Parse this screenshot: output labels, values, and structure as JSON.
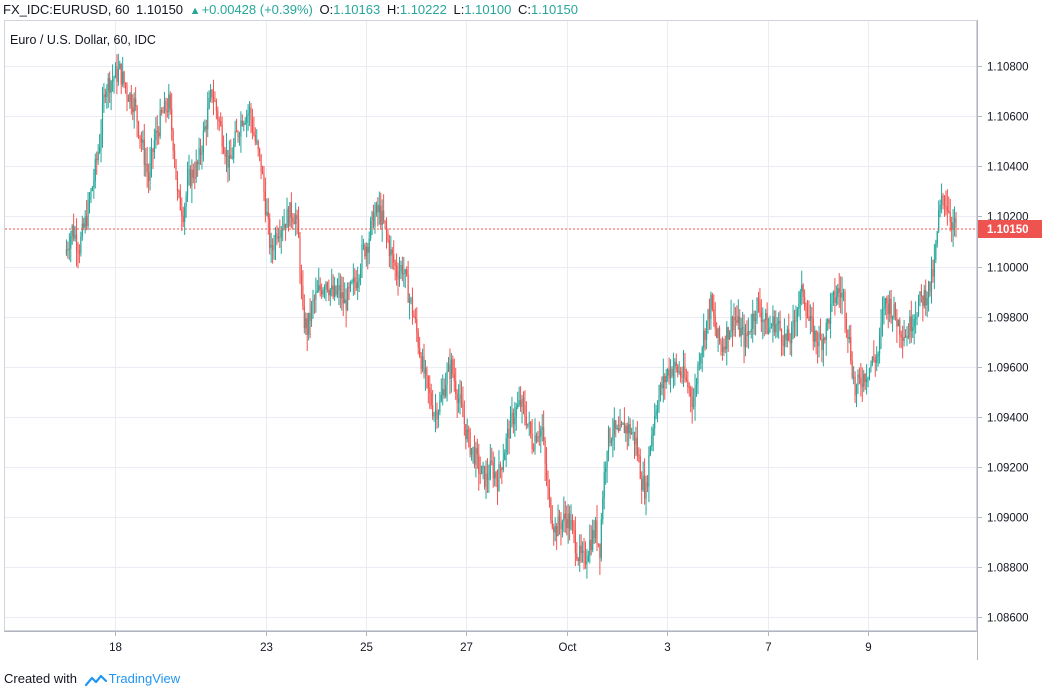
{
  "header": {
    "symbol_interval": "FX_IDC:EURUSD, 60",
    "last": "1.10150",
    "change": "+0.00428 (+0.39%)",
    "o_label": "O:",
    "o_value": "1.10163",
    "h_label": "H:",
    "h_value": "1.10222",
    "l_label": "L:",
    "l_value": "1.10100",
    "c_label": "C:",
    "c_value": "1.10150"
  },
  "footer": {
    "created_with": "Created with",
    "brand": "TradingView"
  },
  "colors": {
    "up": "#26a69a",
    "down": "#ef5350",
    "grid": "#e9edf3",
    "last_price_bg": "#ef5350"
  },
  "chart_data": {
    "type": "candlestick",
    "title": "Euro / U.S. Dollar, 60, IDC",
    "ylim": [
      1.0855,
      1.1098
    ],
    "yticks": [
      "1.10800",
      "1.10600",
      "1.10400",
      "1.10200",
      "1.10000",
      "1.09800",
      "1.09600",
      "1.09400",
      "1.09200",
      "1.09000",
      "1.08800",
      "1.08600"
    ],
    "xticks": [
      "18",
      "23",
      "25",
      "27",
      "Oct",
      "3",
      "7",
      "9"
    ],
    "last_price": "1.10150",
    "last_price_value": 1.1015,
    "grid": true,
    "close_path": [
      [
        0,
        1.1005
      ],
      [
        5,
        1.1015
      ],
      [
        10,
        1.1008
      ],
      [
        15,
        1.102
      ],
      [
        20,
        1.1035
      ],
      [
        24,
        1.105
      ],
      [
        28,
        1.1072
      ],
      [
        33,
        1.1075
      ],
      [
        38,
        1.1078
      ],
      [
        43,
        1.107
      ],
      [
        48,
        1.1065
      ],
      [
        53,
        1.105
      ],
      [
        58,
        1.1035
      ],
      [
        62,
        1.105
      ],
      [
        67,
        1.106
      ],
      [
        72,
        1.1065
      ],
      [
        76,
        1.1045
      ],
      [
        78,
        1.1028
      ],
      [
        82,
        1.1022
      ],
      [
        86,
        1.1035
      ],
      [
        92,
        1.104
      ],
      [
        97,
        1.1055
      ],
      [
        102,
        1.107
      ],
      [
        106,
        1.106
      ],
      [
        110,
        1.105
      ],
      [
        114,
        1.104
      ],
      [
        118,
        1.105
      ],
      [
        123,
        1.106
      ],
      [
        128,
        1.1062
      ],
      [
        132,
        1.105
      ],
      [
        136,
        1.104
      ],
      [
        140,
        1.102
      ],
      [
        143,
        1.1005
      ],
      [
        147,
        1.1015
      ],
      [
        152,
        1.1018
      ],
      [
        157,
        1.1022
      ],
      [
        160,
        1.102
      ],
      [
        162,
        1.101
      ],
      [
        165,
        1.098
      ],
      [
        168,
        1.0975
      ],
      [
        172,
        1.0985
      ],
      [
        176,
        1.099
      ],
      [
        181,
        1.0995
      ],
      [
        186,
        1.0988
      ],
      [
        190,
        1.099
      ],
      [
        194,
        1.0985
      ],
      [
        198,
        1.099
      ],
      [
        202,
        1.0995
      ],
      [
        206,
        1.1005
      ],
      [
        210,
        1.101
      ],
      [
        214,
        1.102
      ],
      [
        218,
        1.1022
      ],
      [
        222,
        1.1015
      ],
      [
        226,
        1.1005
      ],
      [
        230,
        1.0998
      ],
      [
        234,
        1.1
      ],
      [
        238,
        1.099
      ],
      [
        242,
        1.098
      ],
      [
        245,
        1.097
      ],
      [
        248,
        1.096
      ],
      [
        252,
        1.095
      ],
      [
        256,
        1.0942
      ],
      [
        260,
        1.0945
      ],
      [
        264,
        1.0955
      ],
      [
        268,
        1.096
      ],
      [
        272,
        1.095
      ],
      [
        276,
        1.094
      ],
      [
        280,
        1.093
      ],
      [
        284,
        1.0925
      ],
      [
        288,
        1.0918
      ],
      [
        292,
        1.0915
      ],
      [
        296,
        1.092
      ],
      [
        300,
        1.0915
      ],
      [
        304,
        1.0925
      ],
      [
        308,
        1.0935
      ],
      [
        312,
        1.0942
      ],
      [
        316,
        1.0945
      ],
      [
        320,
        1.094
      ],
      [
        324,
        1.093
      ],
      [
        328,
        1.0935
      ],
      [
        331,
        1.0935
      ],
      [
        333,
        1.092
      ],
      [
        336,
        1.0905
      ],
      [
        340,
        1.0895
      ],
      [
        344,
        1.0898
      ],
      [
        348,
        1.09
      ],
      [
        352,
        1.0895
      ],
      [
        356,
        1.0885
      ],
      [
        360,
        1.0882
      ],
      [
        364,
        1.089
      ],
      [
        368,
        1.0895
      ],
      [
        371,
        1.0888
      ],
      [
        373,
        1.091
      ],
      [
        376,
        1.093
      ],
      [
        380,
        1.0935
      ],
      [
        384,
        1.0932
      ],
      [
        388,
        1.0936
      ],
      [
        392,
        1.0935
      ],
      [
        396,
        1.093
      ],
      [
        400,
        1.0915
      ],
      [
        403,
        1.091
      ],
      [
        406,
        1.093
      ],
      [
        410,
        1.0945
      ],
      [
        414,
        1.0952
      ],
      [
        418,
        1.0958
      ],
      [
        422,
        1.096
      ],
      [
        426,
        1.0958
      ],
      [
        430,
        1.0955
      ],
      [
        434,
        1.095
      ],
      [
        436,
        1.0945
      ],
      [
        440,
        1.0965
      ],
      [
        444,
        1.0975
      ],
      [
        448,
        1.0985
      ],
      [
        452,
        1.0972
      ],
      [
        456,
        1.0968
      ],
      [
        460,
        1.0975
      ],
      [
        464,
        1.098
      ],
      [
        468,
        1.0975
      ],
      [
        472,
        1.097
      ],
      [
        476,
        1.0978
      ],
      [
        480,
        1.0985
      ],
      [
        484,
        1.098
      ],
      [
        488,
        1.0975
      ],
      [
        492,
        1.0978
      ],
      [
        496,
        1.0975
      ],
      [
        500,
        1.097
      ],
      [
        504,
        1.0972
      ],
      [
        508,
        1.0985
      ],
      [
        512,
        1.099
      ],
      [
        516,
        1.0978
      ],
      [
        520,
        1.0972
      ],
      [
        524,
        1.097
      ],
      [
        528,
        1.0975
      ],
      [
        532,
        1.0985
      ],
      [
        536,
        1.099
      ],
      [
        540,
        1.0988
      ],
      [
        544,
        1.097
      ],
      [
        548,
        1.095
      ],
      [
        552,
        1.0955
      ],
      [
        556,
        1.0958
      ],
      [
        560,
        1.0962
      ],
      [
        564,
        1.0965
      ],
      [
        568,
        1.0985
      ],
      [
        572,
        1.0985
      ],
      [
        576,
        1.098
      ],
      [
        580,
        1.0975
      ],
      [
        584,
        1.0973
      ],
      [
        588,
        1.098
      ],
      [
        592,
        1.0985
      ],
      [
        596,
        1.0988
      ],
      [
        600,
        1.0992
      ],
      [
        603,
        1.1
      ],
      [
        606,
        1.102
      ],
      [
        609,
        1.1028
      ],
      [
        612,
        1.1025
      ],
      [
        615,
        1.1018
      ],
      [
        618,
        1.1015
      ]
    ]
  }
}
